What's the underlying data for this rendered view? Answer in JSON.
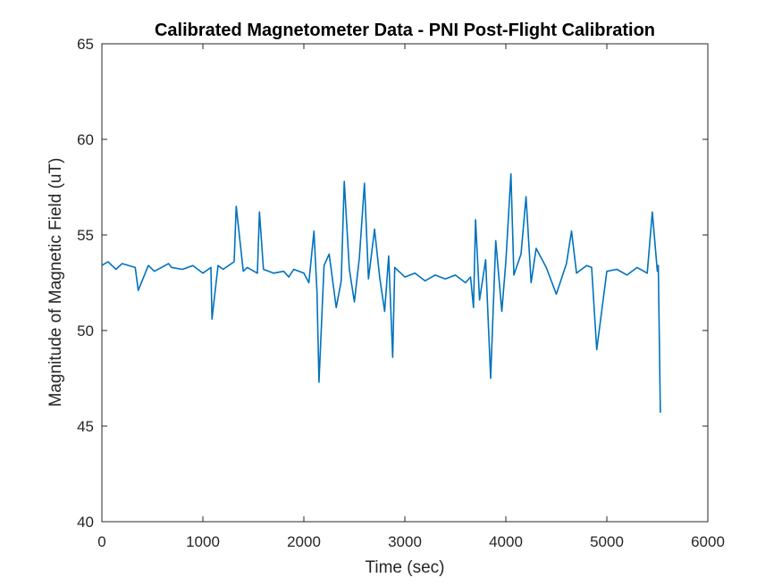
{
  "chart_data": {
    "type": "line",
    "title": "Calibrated Magnetometer Data - PNI Post-Flight Calibration",
    "xlabel": "Time (sec)",
    "ylabel": "Magnitude of Magnetic Field (uT)",
    "xlim": [
      0,
      6000
    ],
    "ylim": [
      40,
      65
    ],
    "x_ticks": [
      0,
      1000,
      2000,
      3000,
      4000,
      5000,
      6000
    ],
    "x_tick_labels": [
      "0",
      "1000",
      "2000",
      "3000",
      "4000",
      "5000",
      "6000"
    ],
    "y_ticks": [
      40,
      45,
      50,
      55,
      60,
      65
    ],
    "y_tick_labels": [
      "40",
      "45",
      "50",
      "55",
      "60",
      "65"
    ],
    "grid": false,
    "line_color": "#0072BD",
    "series": [
      {
        "x": [
          0,
          60,
          140,
          200,
          330,
          360,
          460,
          520,
          660,
          690,
          800,
          900,
          1000,
          1080,
          1090,
          1150,
          1200,
          1310,
          1330,
          1400,
          1440,
          1540,
          1560,
          1600,
          1700,
          1800,
          1850,
          1900,
          2000,
          2050,
          2100,
          2130,
          2150,
          2200,
          2250,
          2320,
          2370,
          2400,
          2450,
          2500,
          2550,
          2600,
          2640,
          2700,
          2750,
          2800,
          2840,
          2880,
          2900,
          3000,
          3100,
          3200,
          3300,
          3400,
          3500,
          3600,
          3650,
          3680,
          3700,
          3740,
          3800,
          3850,
          3900,
          3960,
          4000,
          4050,
          4080,
          4150,
          4200,
          4250,
          4300,
          4400,
          4500,
          4600,
          4650,
          4700,
          4800,
          4850,
          4900,
          5000,
          5100,
          5200,
          5300,
          5400,
          5450,
          5500,
          5510,
          5530
        ],
        "y": [
          53.4,
          53.6,
          53.2,
          53.5,
          53.3,
          52.1,
          53.4,
          53.1,
          53.5,
          53.3,
          53.2,
          53.4,
          53.0,
          53.3,
          50.6,
          53.4,
          53.2,
          53.6,
          56.5,
          53.1,
          53.3,
          53.0,
          56.2,
          53.2,
          53.0,
          53.1,
          52.8,
          53.2,
          53.0,
          52.5,
          55.2,
          52.0,
          47.3,
          53.4,
          54.0,
          51.2,
          52.6,
          57.8,
          53.2,
          51.5,
          53.8,
          57.7,
          52.7,
          55.3,
          52.8,
          51.0,
          53.9,
          48.6,
          53.3,
          52.8,
          53.0,
          52.6,
          52.9,
          52.7,
          52.9,
          52.5,
          52.8,
          51.2,
          55.8,
          51.6,
          53.7,
          47.5,
          54.7,
          51.0,
          53.6,
          58.2,
          52.9,
          54.0,
          57.0,
          52.5,
          54.3,
          53.3,
          51.9,
          53.5,
          55.2,
          53.0,
          53.4,
          53.3,
          49.0,
          53.1,
          53.2,
          52.9,
          53.3,
          53.0,
          56.2,
          53.1,
          53.4,
          45.7
        ]
      }
    ]
  }
}
